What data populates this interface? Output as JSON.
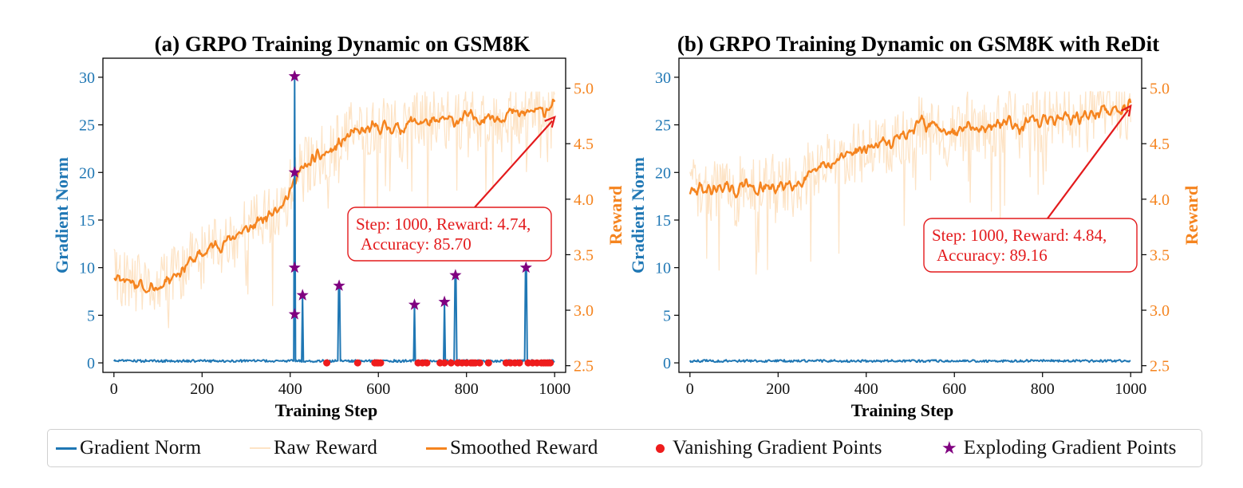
{
  "colors": {
    "gradient": "#1f77b4",
    "raw_reward": "#fde3c5",
    "smoothed_reward": "#f5841f",
    "vanishing": "#ee1c1c",
    "exploding": "#800080",
    "annotation": "#e31a1c"
  },
  "legend": {
    "items": [
      {
        "label": "Gradient Norm",
        "marker": "line",
        "color": "#1f77b4"
      },
      {
        "label": "Raw Reward",
        "marker": "line",
        "color": "#fde3c5"
      },
      {
        "label": "Smoothed Reward",
        "marker": "line",
        "color": "#f5841f"
      },
      {
        "label": "Vanishing Gradient Points",
        "marker": "dot",
        "color": "#ee1c1c"
      },
      {
        "label": "Exploding Gradient Points",
        "marker": "star",
        "color": "#800080"
      }
    ],
    "placement": "bottom-center"
  },
  "chart_data": [
    {
      "type": "line",
      "title": "(a) GRPO Training Dynamic on GSM8K",
      "xlabel": "Training Step",
      "ylabel_left": "Gradient Norm",
      "ylabel_right": "Reward",
      "xlim": [
        -25,
        1025
      ],
      "ylim_left": [
        -1,
        32
      ],
      "ylim_right": [
        2.44,
        5.27
      ],
      "xticks": [
        0,
        200,
        400,
        600,
        800,
        1000
      ],
      "yticks_left": [
        0,
        5,
        10,
        15,
        20,
        25,
        30
      ],
      "yticks_right": [
        2.5,
        3.0,
        3.5,
        4.0,
        4.5,
        5.0
      ],
      "smoothed_reward": {
        "x": [
          0,
          25,
          50,
          75,
          100,
          125,
          150,
          175,
          200,
          225,
          250,
          275,
          300,
          325,
          350,
          375,
          400,
          410,
          425,
          450,
          475,
          500,
          525,
          550,
          575,
          600,
          625,
          650,
          675,
          700,
          725,
          750,
          775,
          800,
          825,
          850,
          875,
          900,
          925,
          950,
          975,
          1000
        ],
        "y": [
          3.32,
          3.28,
          3.25,
          3.18,
          3.2,
          3.3,
          3.35,
          3.45,
          3.5,
          3.58,
          3.6,
          3.68,
          3.72,
          3.78,
          3.85,
          3.95,
          4.05,
          4.2,
          4.25,
          4.35,
          4.4,
          4.45,
          4.55,
          4.6,
          4.62,
          4.65,
          4.65,
          4.63,
          4.7,
          4.7,
          4.68,
          4.72,
          4.7,
          4.75,
          4.72,
          4.75,
          4.74,
          4.78,
          4.76,
          4.8,
          4.78,
          4.9
        ]
      },
      "gradient_spikes": [
        {
          "x": 410,
          "y": 30.1
        },
        {
          "x": 428,
          "y": 7.1
        },
        {
          "x": 511,
          "y": 8.1
        },
        {
          "x": 682,
          "y": 6.1
        },
        {
          "x": 750,
          "y": 6.4
        },
        {
          "x": 775,
          "y": 9.2
        },
        {
          "x": 935,
          "y": 10.0
        }
      ],
      "gradient_baseline": 0.2,
      "exploding_points": [
        {
          "x": 410,
          "y": 30.1
        },
        {
          "x": 410,
          "y": 20.0
        },
        {
          "x": 410,
          "y": 10.0
        },
        {
          "x": 410,
          "y": 5.1
        },
        {
          "x": 428,
          "y": 7.1
        },
        {
          "x": 511,
          "y": 8.1
        },
        {
          "x": 682,
          "y": 6.1
        },
        {
          "x": 750,
          "y": 6.4
        },
        {
          "x": 775,
          "y": 9.2
        },
        {
          "x": 935,
          "y": 10.0
        }
      ],
      "vanishing_points_x": [
        483,
        553,
        592,
        597,
        600,
        605,
        690,
        700,
        710,
        740,
        750,
        765,
        780,
        790,
        800,
        810,
        815,
        820,
        830,
        850,
        890,
        900,
        910,
        920,
        940,
        950,
        960,
        970,
        975,
        980,
        985,
        990
      ],
      "annotation": {
        "text_line1": "Step: 1000, Reward: 4.74,",
        "text_line2": "Accuracy: 85.70",
        "point": {
          "x": 1000,
          "y": 4.74
        }
      }
    },
    {
      "type": "line",
      "title": "(b) GRPO Training Dynamic on GSM8K with ReDit",
      "xlabel": "Training Step",
      "ylabel_left": "Gradient Norm",
      "ylabel_right": "Reward",
      "xlim": [
        -25,
        1025
      ],
      "ylim_left": [
        -1,
        32
      ],
      "ylim_right": [
        2.44,
        5.27
      ],
      "xticks": [
        0,
        200,
        400,
        600,
        800,
        1000
      ],
      "yticks_left": [
        0,
        5,
        10,
        15,
        20,
        25,
        30
      ],
      "yticks_right": [
        2.5,
        3.0,
        3.5,
        4.0,
        4.5,
        5.0
      ],
      "smoothed_reward": {
        "x": [
          0,
          25,
          50,
          75,
          100,
          125,
          150,
          175,
          200,
          225,
          250,
          275,
          300,
          325,
          350,
          375,
          400,
          425,
          450,
          475,
          500,
          525,
          550,
          575,
          600,
          625,
          650,
          675,
          700,
          725,
          750,
          775,
          800,
          825,
          850,
          875,
          900,
          925,
          950,
          975,
          1000
        ],
        "y": [
          4.05,
          4.1,
          4.08,
          4.12,
          4.05,
          4.15,
          4.08,
          4.1,
          4.1,
          4.15,
          4.15,
          4.2,
          4.3,
          4.3,
          4.4,
          4.45,
          4.45,
          4.5,
          4.5,
          4.55,
          4.6,
          4.7,
          4.65,
          4.65,
          4.6,
          4.7,
          4.62,
          4.65,
          4.66,
          4.72,
          4.65,
          4.7,
          4.7,
          4.72,
          4.75,
          4.72,
          4.75,
          4.78,
          4.8,
          4.8,
          4.9
        ]
      },
      "gradient_baseline": 0.2,
      "annotation": {
        "text_line1": "Step: 1000, Reward: 4.84,",
        "text_line2": "Accuracy: 89.16",
        "point": {
          "x": 1000,
          "y": 4.84
        }
      }
    }
  ]
}
